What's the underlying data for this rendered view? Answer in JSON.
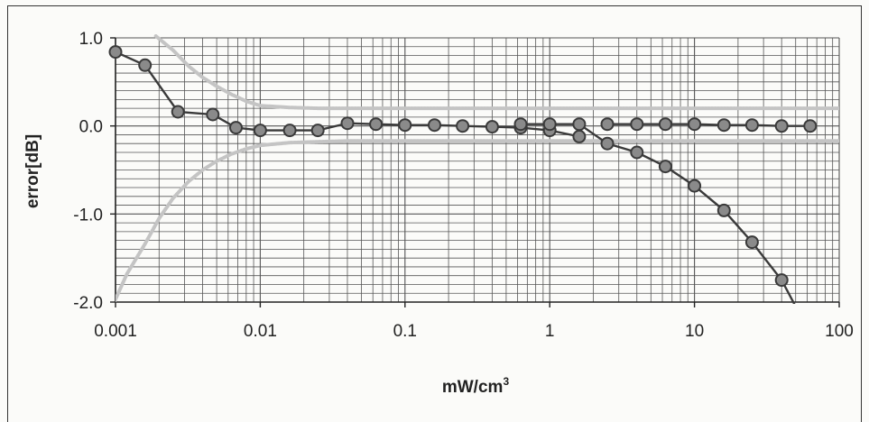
{
  "chart_data": {
    "type": "scatter",
    "title": "",
    "xlabel": "mW/cm",
    "xlabel_superscript": "3",
    "ylabel": "error[dB]",
    "x_scale": "log",
    "xlim": [
      0.001,
      100
    ],
    "ylim": [
      -2.0,
      1.0
    ],
    "x_tick_labels": [
      "0.001",
      "0.01",
      "0.1",
      "1",
      "10",
      "100"
    ],
    "y_tick_labels": [
      "1.0",
      "0.0",
      "-1.0",
      "-2.0"
    ],
    "y_ticks": [
      1.0,
      0.0,
      -1.0,
      -2.0
    ],
    "grid": true,
    "legend": "none",
    "colors": {
      "series": "#3a3a3a",
      "marker_fill": "#8a8a8a",
      "limit": "#c4c4c4",
      "grid": "#555555"
    },
    "series": [
      {
        "x": [
          0.001,
          0.0016,
          0.0027,
          0.0047,
          0.0068,
          0.01,
          0.016,
          0.025,
          0.04,
          0.063,
          0.1,
          0.16,
          0.25,
          0.4,
          0.63,
          1.0,
          1.6
        ],
        "y": [
          0.84,
          0.69,
          0.16,
          0.13,
          -0.02,
          -0.05,
          -0.05,
          -0.05,
          0.03,
          0.02,
          0.01,
          0.01,
          0.0,
          -0.01,
          -0.02,
          -0.05,
          -0.12
        ]
      },
      {
        "x": [
          0.63,
          1.0,
          1.6,
          2.5,
          4.0,
          6.3,
          10,
          16,
          25,
          40,
          50
        ],
        "y": [
          0.02,
          0.02,
          0.02,
          -0.2,
          -0.3,
          -0.46,
          -0.68,
          -0.96,
          -1.32,
          -1.75,
          -2.05
        ],
        "marker_x": [
          0.63,
          1.0,
          1.6,
          2.5,
          4.0,
          6.3,
          10,
          16,
          25,
          40
        ]
      },
      {
        "x": [
          2.5,
          4.0,
          6.3,
          10,
          16,
          25,
          40,
          63
        ],
        "y": [
          0.02,
          0.02,
          0.02,
          0.02,
          0.01,
          0.01,
          0.0,
          0.0
        ]
      },
      {
        "x": [
          0.00095,
          0.0012,
          0.0016,
          0.002,
          0.0025,
          0.0032,
          0.004,
          0.005,
          0.0063,
          0.008,
          0.01,
          0.016,
          0.025,
          0.04,
          0.1,
          0.3,
          1,
          3,
          10,
          30,
          100
        ],
        "y": [
          -2.05,
          -1.68,
          -1.34,
          -1.05,
          -0.82,
          -0.63,
          -0.5,
          -0.4,
          -0.32,
          -0.26,
          -0.22,
          -0.19,
          -0.18,
          -0.17,
          -0.17,
          -0.17,
          -0.17,
          -0.17,
          -0.17,
          -0.17,
          -0.17
        ]
      },
      {
        "x": [
          0.0019,
          0.0025,
          0.0032,
          0.004,
          0.005,
          0.0063,
          0.008,
          0.01,
          0.016,
          0.025,
          0.04,
          0.1,
          0.3,
          1,
          3,
          10,
          30,
          100
        ],
        "y": [
          1.02,
          0.86,
          0.68,
          0.55,
          0.45,
          0.36,
          0.28,
          0.23,
          0.21,
          0.2,
          0.2,
          0.2,
          0.2,
          0.2,
          0.2,
          0.2,
          0.2,
          0.2
        ]
      }
    ]
  }
}
